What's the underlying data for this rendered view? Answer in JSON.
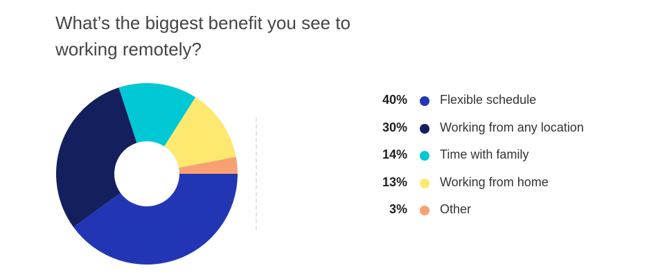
{
  "title": "What’s the biggest benefit you see to working remotely?",
  "chart_data": {
    "type": "pie",
    "donut": true,
    "title": "What’s the biggest benefit you see to working remotely?",
    "legend_position": "right",
    "slices": [
      {
        "label": "Flexible schedule",
        "value": 40,
        "display": "40%",
        "color": "#2236b5"
      },
      {
        "label": "Working from any location",
        "value": 30,
        "display": "30%",
        "color": "#141f5e"
      },
      {
        "label": "Time with family",
        "value": 14,
        "display": "14%",
        "color": "#00c8d4"
      },
      {
        "label": "Working from home",
        "value": 13,
        "display": "13%",
        "color": "#fde870"
      },
      {
        "label": "Other",
        "value": 3,
        "display": "3%",
        "color": "#f9a072"
      }
    ]
  }
}
